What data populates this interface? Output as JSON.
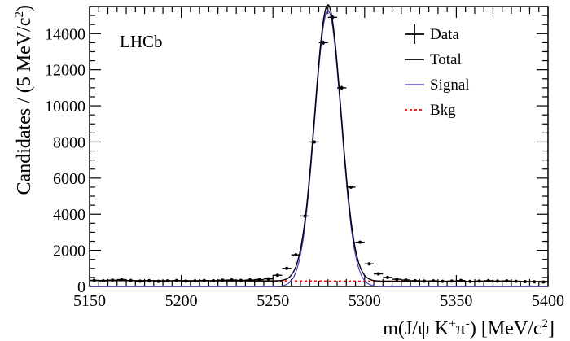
{
  "chart_data": {
    "type": "scatter",
    "title": "",
    "annotation": "LHCb",
    "xlabel_parts": [
      "m(J/ψ K",
      "+",
      "π",
      "-",
      ") [MeV/c",
      "2",
      "]"
    ],
    "ylabel_parts": [
      "Candidates / (5 MeV/c",
      "2",
      ")"
    ],
    "xlim": [
      5150,
      5400
    ],
    "ylim": [
      0,
      15500
    ],
    "x_ticks": [
      5150,
      5200,
      5250,
      5300,
      5350,
      5400
    ],
    "y_ticks": [
      0,
      2000,
      4000,
      6000,
      8000,
      10000,
      12000,
      14000
    ],
    "x_tick_labels": [
      "5150",
      "5200",
      "5250",
      "5300",
      "5350",
      "5400"
    ],
    "y_tick_labels": [
      "0",
      "2000",
      "4000",
      "6000",
      "8000",
      "10000",
      "12000",
      "14000"
    ],
    "grid": false,
    "legend_position": "top-right",
    "legend": [
      "Data",
      "Total",
      "Signal",
      "Bkg"
    ],
    "colors": {
      "data": "#000000",
      "total": "#000000",
      "signal": "#3333cc",
      "bkg": "#ff0000"
    },
    "bin_width": 5,
    "data": {
      "x": [
        5152.5,
        5157.5,
        5162.5,
        5167.5,
        5172.5,
        5177.5,
        5182.5,
        5187.5,
        5192.5,
        5197.5,
        5202.5,
        5207.5,
        5212.5,
        5217.5,
        5222.5,
        5227.5,
        5232.5,
        5237.5,
        5242.5,
        5247.5,
        5252.5,
        5257.5,
        5262.5,
        5267.5,
        5272.5,
        5277.5,
        5282.5,
        5287.5,
        5292.5,
        5297.5,
        5302.5,
        5307.5,
        5312.5,
        5317.5,
        5322.5,
        5327.5,
        5332.5,
        5337.5,
        5342.5,
        5347.5,
        5352.5,
        5357.5,
        5362.5,
        5367.5,
        5372.5,
        5377.5,
        5382.5,
        5387.5,
        5392.5,
        5397.5
      ],
      "y": [
        340,
        310,
        350,
        380,
        330,
        300,
        320,
        290,
        310,
        330,
        300,
        310,
        330,
        320,
        350,
        360,
        340,
        360,
        380,
        420,
        620,
        1000,
        1750,
        3900,
        8000,
        13500,
        14900,
        11000,
        5500,
        2450,
        1250,
        700,
        500,
        400,
        360,
        320,
        300,
        310,
        290,
        300,
        330,
        280,
        300,
        320,
        300,
        310,
        290,
        270,
        260,
        250
      ]
    },
    "signal": {
      "model": "gaussian",
      "peak_height": 15300,
      "mean": 5280,
      "sigma": 7.2
    },
    "background": {
      "model": "linear",
      "y_at_5150": 330,
      "y_at_5400": 270
    }
  }
}
